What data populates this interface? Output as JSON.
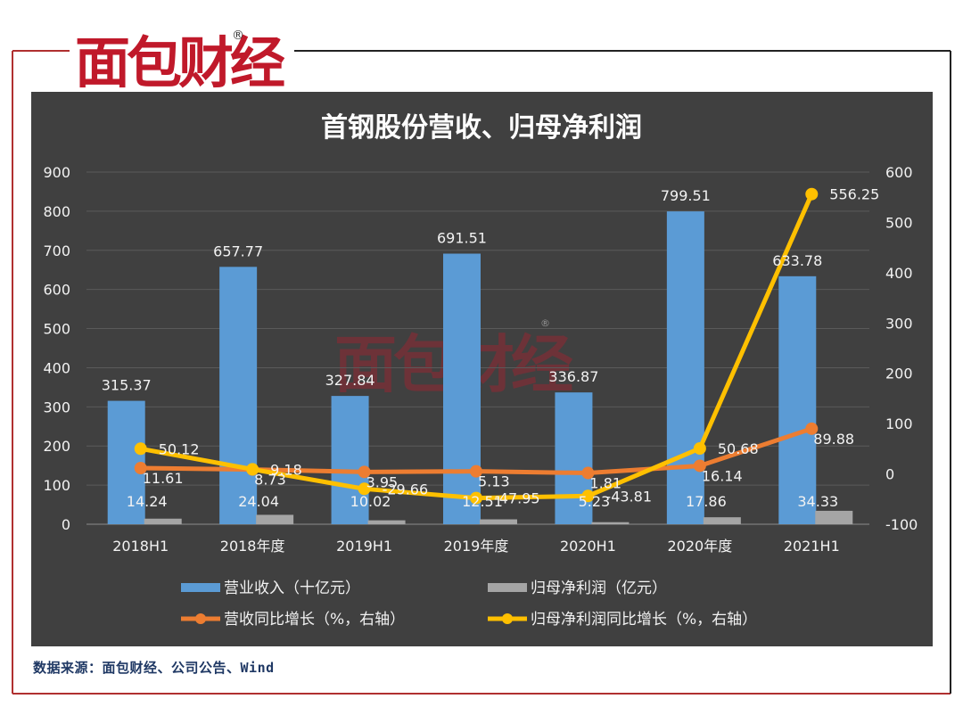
{
  "brand": {
    "name": "面包财经",
    "registered": "®"
  },
  "source_note": "数据来源：面包财经、公司公告、Wind",
  "colors": {
    "revenue_bar": "#5b9bd5",
    "profit_bar": "#a5a5a5",
    "revenue_growth": "#ed7d31",
    "profit_growth": "#ffc000",
    "panel": "#404040",
    "brand_red": "#c0192a"
  },
  "chart_data": {
    "type": "bar",
    "title": "首钢股份营收、归母净利润",
    "categories": [
      "2018H1",
      "2018年度",
      "2019H1",
      "2019年度",
      "2020H1",
      "2020年度",
      "2021H1"
    ],
    "y_left": {
      "min": 0,
      "max": 900,
      "ticks": [
        "0",
        "100",
        "200",
        "300",
        "400",
        "500",
        "600",
        "700",
        "800",
        "900"
      ]
    },
    "y_right": {
      "min": -100,
      "max": 600,
      "ticks": [
        "-100",
        "0",
        "100",
        "200",
        "300",
        "400",
        "500",
        "600"
      ]
    },
    "grid": true,
    "legend_position": "bottom",
    "series": [
      {
        "name": "营业收入（十亿元）",
        "kind": "bar",
        "axis": "left",
        "values": [
          315.37,
          657.77,
          327.84,
          691.51,
          336.87,
          799.51,
          633.78
        ],
        "labels": [
          "315.37",
          "657.77",
          "327.84",
          "691.51",
          "336.87",
          "799.51",
          "633.78"
        ]
      },
      {
        "name": "归母净利润（亿元）",
        "kind": "bar",
        "axis": "left",
        "values": [
          14.24,
          24.04,
          10.02,
          12.51,
          5.23,
          17.86,
          34.33
        ],
        "labels": [
          "14.24",
          "24.04",
          "10.02",
          "12.51",
          "5.23",
          "17.86",
          "34.33"
        ]
      },
      {
        "name": "营收同比增长（%，右轴）",
        "kind": "line",
        "axis": "right",
        "values": [
          11.61,
          8.73,
          3.95,
          5.13,
          1.81,
          16.14,
          89.88
        ],
        "labels": [
          "11.61",
          "8.73",
          "3.95",
          "5.13",
          "1.81",
          "16.14",
          "89.88"
        ]
      },
      {
        "name": "归母净利润同比增长（%，右轴）",
        "kind": "line",
        "axis": "right",
        "values": [
          50.12,
          9.18,
          -29.66,
          -47.95,
          -43.81,
          50.68,
          556.25
        ],
        "labels": [
          "50.12",
          "9.18",
          "-29.66",
          "-47.95",
          "-43.81",
          "50.68",
          "556.25"
        ]
      }
    ]
  }
}
